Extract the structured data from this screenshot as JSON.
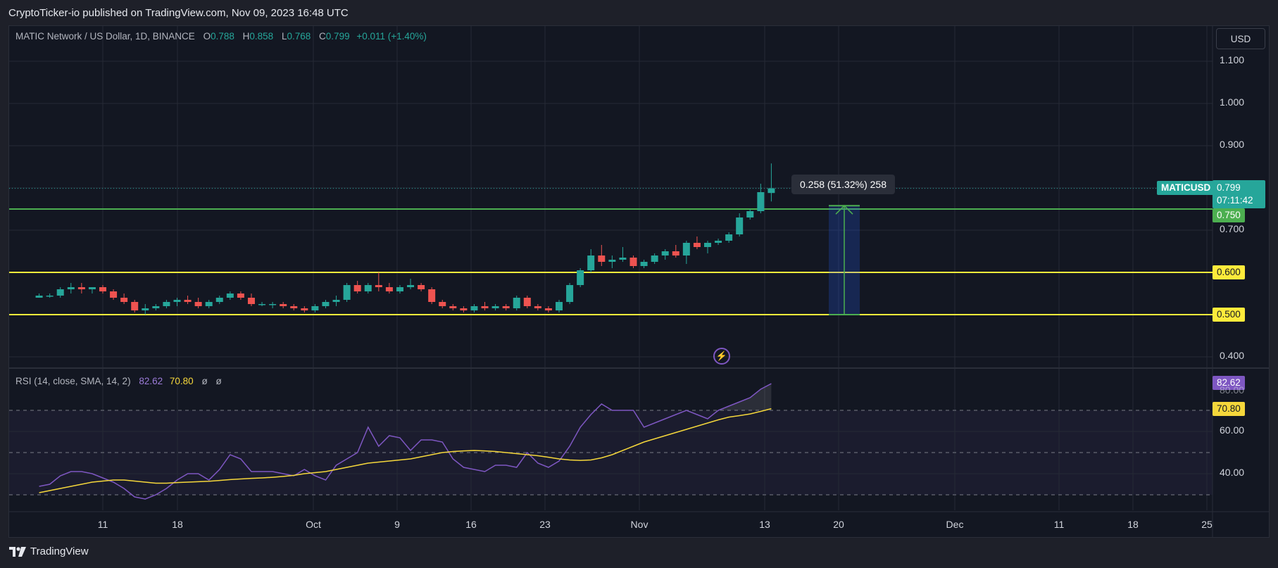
{
  "header": {
    "publisher": "CryptoTicker-io published on TradingView.com, Nov 09, 2023 16:48 UTC"
  },
  "legend": {
    "symbol": "MATIC Network / US Dollar, 1D, BINANCE",
    "o_label": "O",
    "o": "0.788",
    "h_label": "H",
    "h": "0.858",
    "l_label": "L",
    "l": "0.768",
    "c_label": "C",
    "c": "0.799",
    "change": "+0.011 (+1.40%)"
  },
  "currency_button": "USD",
  "price_axis": {
    "ticks": [
      "1.100",
      "1.000",
      "0.900",
      "0.700",
      "0.400"
    ]
  },
  "rsi_axis": {
    "ticks": [
      "60.00",
      "40.00"
    ],
    "partial_tick": "80.00"
  },
  "time_axis": {
    "ticks": [
      "11",
      "18",
      "Oct",
      "9",
      "16",
      "23",
      "Nov",
      "13",
      "20",
      "Dec",
      "11",
      "18",
      "25"
    ]
  },
  "badges": {
    "symbol_tag": "MATICUSD",
    "last_price": "0.799",
    "countdown": "07:11:42",
    "green_level": "0.750",
    "yellow_upper": "0.600",
    "yellow_lower": "0.500",
    "rsi_value": "82.62",
    "rsi_sma": "70.80"
  },
  "measure": {
    "label": "0.258 (51.32%) 258"
  },
  "rsi_legend": {
    "title": "RSI (14, close, SMA, 14, 2)",
    "rsi": "82.62",
    "sma": "70.80",
    "z1": "ø",
    "z2": "ø"
  },
  "footer": {
    "brand": "TradingView"
  },
  "colors": {
    "up": "#26a69a",
    "down": "#ef5350",
    "green_line": "#4caf50",
    "yellow_line": "#ffeb3b",
    "rsi_line": "#7e57c2",
    "rsi_sma": "#f5d73b",
    "background": "#131722"
  },
  "chart_data": [
    {
      "type": "candlestick",
      "title": "MATIC Network / US Dollar, 1D, BINANCE",
      "ylim": [
        0.36,
        1.15
      ],
      "x_start": "2023-09-05",
      "x_labels": [
        "11",
        "18",
        "Oct",
        "9",
        "16",
        "23",
        "Nov",
        "13",
        "20",
        "Dec",
        "11",
        "18",
        "25"
      ],
      "candles": [
        [
          0.54,
          0.55,
          0.54,
          0.545
        ],
        [
          0.545,
          0.55,
          0.54,
          0.545
        ],
        [
          0.545,
          0.565,
          0.54,
          0.56
        ],
        [
          0.56,
          0.575,
          0.55,
          0.565
        ],
        [
          0.565,
          0.575,
          0.55,
          0.56
        ],
        [
          0.56,
          0.565,
          0.55,
          0.565
        ],
        [
          0.565,
          0.57,
          0.55,
          0.555
        ],
        [
          0.555,
          0.56,
          0.535,
          0.54
        ],
        [
          0.54,
          0.55,
          0.525,
          0.53
        ],
        [
          0.53,
          0.535,
          0.505,
          0.51
        ],
        [
          0.51,
          0.525,
          0.5,
          0.515
        ],
        [
          0.515,
          0.525,
          0.51,
          0.52
        ],
        [
          0.52,
          0.535,
          0.515,
          0.53
        ],
        [
          0.53,
          0.54,
          0.52,
          0.535
        ],
        [
          0.535,
          0.545,
          0.525,
          0.53
        ],
        [
          0.53,
          0.54,
          0.515,
          0.52
        ],
        [
          0.52,
          0.535,
          0.515,
          0.53
        ],
        [
          0.53,
          0.545,
          0.525,
          0.54
        ],
        [
          0.54,
          0.555,
          0.535,
          0.55
        ],
        [
          0.55,
          0.555,
          0.535,
          0.54
        ],
        [
          0.54,
          0.55,
          0.52,
          0.525
        ],
        [
          0.525,
          0.53,
          0.52,
          0.525
        ],
        [
          0.525,
          0.53,
          0.515,
          0.525
        ],
        [
          0.525,
          0.53,
          0.515,
          0.52
        ],
        [
          0.52,
          0.525,
          0.51,
          0.515
        ],
        [
          0.515,
          0.52,
          0.505,
          0.51
        ],
        [
          0.51,
          0.525,
          0.505,
          0.52
        ],
        [
          0.52,
          0.535,
          0.515,
          0.53
        ],
        [
          0.53,
          0.545,
          0.52,
          0.535
        ],
        [
          0.535,
          0.575,
          0.53,
          0.57
        ],
        [
          0.57,
          0.58,
          0.55,
          0.555
        ],
        [
          0.555,
          0.575,
          0.55,
          0.57
        ],
        [
          0.57,
          0.6,
          0.555,
          0.565
        ],
        [
          0.565,
          0.575,
          0.55,
          0.555
        ],
        [
          0.555,
          0.57,
          0.55,
          0.565
        ],
        [
          0.565,
          0.585,
          0.56,
          0.57
        ],
        [
          0.57,
          0.575,
          0.555,
          0.56
        ],
        [
          0.56,
          0.565,
          0.525,
          0.53
        ],
        [
          0.53,
          0.535,
          0.515,
          0.52
        ],
        [
          0.52,
          0.525,
          0.51,
          0.515
        ],
        [
          0.515,
          0.52,
          0.505,
          0.51
        ],
        [
          0.51,
          0.525,
          0.505,
          0.52
        ],
        [
          0.52,
          0.53,
          0.51,
          0.515
        ],
        [
          0.515,
          0.525,
          0.51,
          0.52
        ],
        [
          0.52,
          0.525,
          0.51,
          0.515
        ],
        [
          0.515,
          0.545,
          0.51,
          0.54
        ],
        [
          0.54,
          0.545,
          0.515,
          0.52
        ],
        [
          0.52,
          0.525,
          0.51,
          0.515
        ],
        [
          0.515,
          0.52,
          0.505,
          0.51
        ],
        [
          0.51,
          0.535,
          0.505,
          0.53
        ],
        [
          0.53,
          0.575,
          0.525,
          0.57
        ],
        [
          0.57,
          0.61,
          0.565,
          0.605
        ],
        [
          0.605,
          0.655,
          0.6,
          0.64
        ],
        [
          0.64,
          0.665,
          0.615,
          0.625
        ],
        [
          0.625,
          0.64,
          0.61,
          0.63
        ],
        [
          0.63,
          0.66,
          0.625,
          0.635
        ],
        [
          0.635,
          0.64,
          0.61,
          0.615
        ],
        [
          0.615,
          0.63,
          0.61,
          0.625
        ],
        [
          0.625,
          0.645,
          0.62,
          0.64
        ],
        [
          0.64,
          0.655,
          0.63,
          0.65
        ],
        [
          0.65,
          0.665,
          0.635,
          0.64
        ],
        [
          0.64,
          0.675,
          0.62,
          0.67
        ],
        [
          0.67,
          0.685,
          0.655,
          0.66
        ],
        [
          0.66,
          0.675,
          0.645,
          0.67
        ],
        [
          0.67,
          0.68,
          0.665,
          0.675
        ],
        [
          0.675,
          0.695,
          0.67,
          0.69
        ],
        [
          0.69,
          0.74,
          0.685,
          0.73
        ],
        [
          0.73,
          0.75,
          0.725,
          0.745
        ],
        [
          0.745,
          0.81,
          0.74,
          0.79
        ],
        [
          0.788,
          0.858,
          0.768,
          0.799
        ]
      ]
    },
    {
      "type": "line",
      "title": "RSI (14, close, SMA, 14, 2)",
      "ylim": [
        22,
        90
      ],
      "levels": [
        70,
        50,
        30
      ],
      "series": [
        {
          "name": "RSI",
          "values": [
            34,
            35,
            39,
            41,
            41,
            40,
            38,
            36,
            33,
            29,
            28,
            30,
            33,
            37,
            40,
            40,
            37,
            42,
            49,
            47,
            41,
            41,
            41,
            40,
            39,
            42,
            39,
            37,
            44,
            47,
            50,
            62,
            53,
            58,
            57,
            51,
            56,
            56,
            55,
            47,
            43,
            42,
            41,
            44,
            44,
            43,
            50,
            45,
            43,
            46,
            53,
            62,
            68,
            73,
            70,
            70,
            70,
            62,
            64,
            66,
            68,
            70,
            68,
            66,
            70,
            72,
            74,
            76,
            80,
            82.62
          ]
        },
        {
          "name": "SMA",
          "values": [
            31,
            32,
            33,
            34,
            35,
            36,
            36.5,
            37,
            37,
            36.5,
            36,
            35.5,
            35.5,
            35.8,
            36,
            36.2,
            36.4,
            36.8,
            37.2,
            37.5,
            37.8,
            38,
            38.3,
            38.7,
            39.2,
            40,
            40.5,
            41,
            42,
            43,
            44,
            45,
            45.5,
            46,
            46.5,
            47,
            48,
            49,
            50,
            50.5,
            50.8,
            51,
            50.8,
            50.5,
            50,
            49.5,
            49,
            48.5,
            47.8,
            47,
            46.5,
            46.3,
            46.5,
            47.5,
            49,
            51,
            53,
            55,
            56.5,
            58,
            59.5,
            61,
            62.5,
            64,
            65.5,
            66.8,
            67.5,
            68.3,
            69.5,
            70.8
          ]
        }
      ]
    }
  ]
}
